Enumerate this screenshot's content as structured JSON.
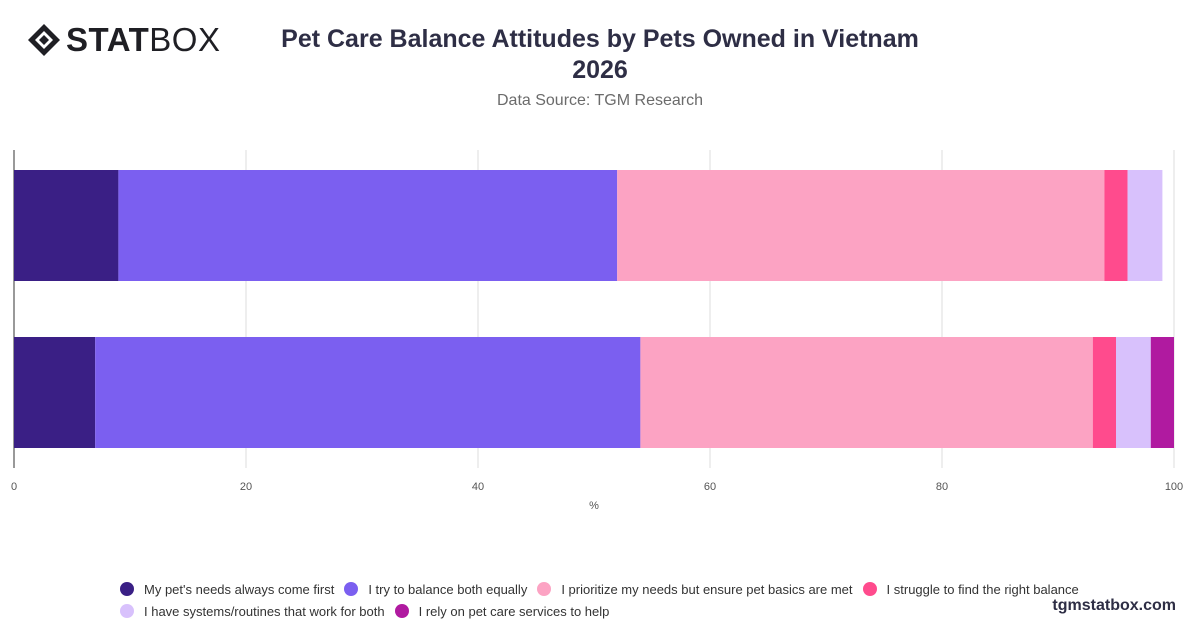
{
  "brand": {
    "logo_bold": "STAT",
    "logo_light": "BOX",
    "watermark": "tgmstatbox.com"
  },
  "header": {
    "title": "Pet Care Balance Attitudes by Pets Owned in Vietnam\n2026",
    "subtitle": "Data Source: TGM Research"
  },
  "chart_data": {
    "type": "bar",
    "orientation": "horizontal",
    "stacked": true,
    "title": "Pet Care Balance Attitudes by Pets Owned in Vietnam 2026",
    "subtitle": "Data Source: TGM Research",
    "xlabel": "%",
    "ylabel": "",
    "xlim": [
      0,
      100
    ],
    "xticks": [
      "0",
      "20",
      "40",
      "60",
      "80",
      "100"
    ],
    "grid": "vertical",
    "legend_position": "bottom",
    "categories": [
      "",
      ""
    ],
    "series": [
      {
        "name": "My pet's needs always come first",
        "color": "#3a1f85",
        "values": [
          9,
          7
        ]
      },
      {
        "name": "I try to balance both equally",
        "color": "#7b5ff0",
        "values": [
          43,
          47
        ]
      },
      {
        "name": "I prioritize my needs but ensure pet basics are met",
        "color": "#fca3c3",
        "values": [
          42,
          39
        ]
      },
      {
        "name": "I struggle to find the right balance",
        "color": "#ff4b8d",
        "values": [
          2,
          2
        ]
      },
      {
        "name": "I have systems/routines that work for both",
        "color": "#d8c1fc",
        "values": [
          3,
          3
        ]
      },
      {
        "name": "I rely on pet care services to help",
        "color": "#b01aa0",
        "values": [
          0,
          2
        ]
      }
    ]
  }
}
